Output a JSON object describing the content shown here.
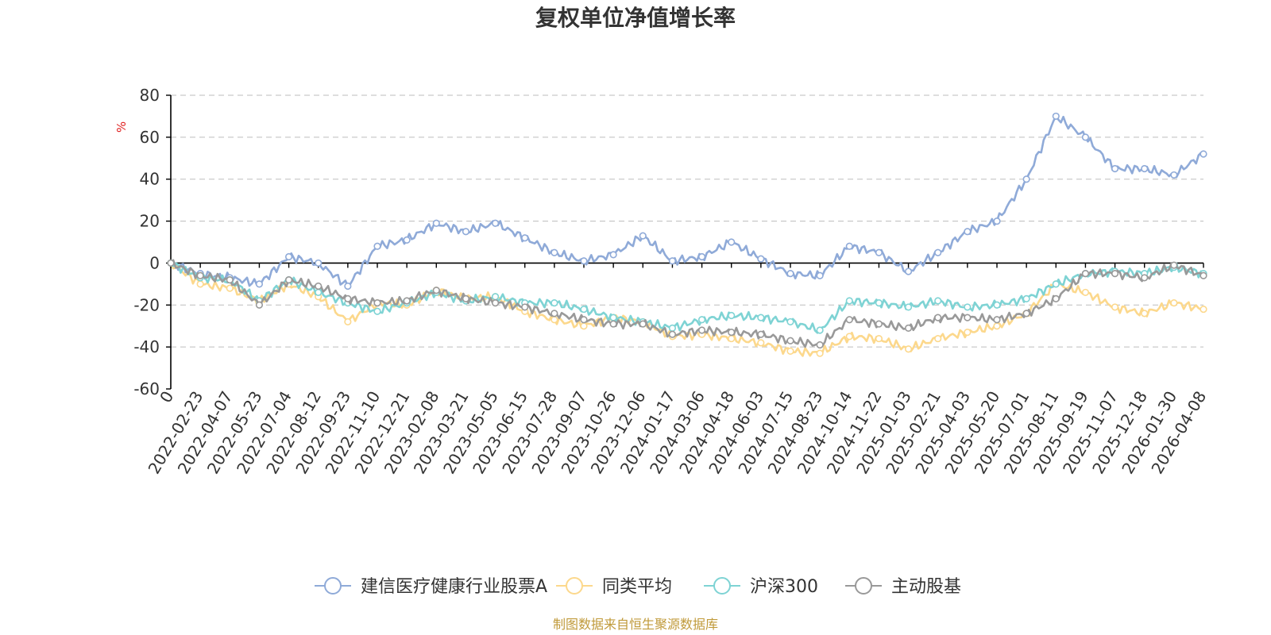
{
  "chart_data": {
    "type": "line",
    "title": "复权单位净值增长率",
    "ylabel": "%",
    "ylim": [
      -60,
      80
    ],
    "yticks": [
      80,
      60,
      40,
      20,
      0,
      -20,
      -40,
      -60
    ],
    "grid": true,
    "legend_position": "bottom",
    "source_note": "制图数据来自恒生聚源数据库",
    "x": [
      "0",
      "2022-02-23",
      "2022-04-07",
      "2022-05-23",
      "2022-07-04",
      "2022-08-12",
      "2022-09-23",
      "2022-11-10",
      "2022-12-21",
      "2023-02-08",
      "2023-03-21",
      "2023-05-05",
      "2023-06-15",
      "2023-07-28",
      "2023-09-07",
      "2023-10-26",
      "2023-12-06",
      "2024-01-17",
      "2024-03-06",
      "2024-04-18",
      "2024-06-03",
      "2024-07-15",
      "2024-08-23",
      "2024-10-14",
      "2024-11-22",
      "2025-01-03",
      "2025-02-21",
      "2025-04-03",
      "2025-05-20",
      "2025-07-01",
      "2025-08-11",
      "2025-09-19",
      "2025-11-07",
      "2025-12-18",
      "2026-01-30",
      "2026-04-08"
    ],
    "series": [
      {
        "name": "建信医疗健康行业股票A",
        "color": "#8faad8",
        "values": [
          0,
          -5,
          -7,
          -10,
          3,
          0,
          -11,
          8,
          11,
          19,
          15,
          19,
          12,
          5,
          1,
          4,
          13,
          1,
          3,
          10,
          2,
          -5,
          -6,
          8,
          5,
          -4,
          5,
          15,
          20,
          40,
          70,
          60,
          45,
          45,
          42,
          52
        ]
      },
      {
        "name": "同类平均",
        "color": "#fcd88c",
        "values": [
          0,
          -10,
          -12,
          -18,
          -10,
          -16,
          -28,
          -19,
          -20,
          -13,
          -17,
          -16,
          -23,
          -27,
          -30,
          -26,
          -28,
          -35,
          -34,
          -36,
          -38,
          -42,
          -43,
          -35,
          -36,
          -41,
          -36,
          -33,
          -30,
          -24,
          -10,
          -14,
          -21,
          -24,
          -19,
          -22
        ]
      },
      {
        "name": "沪深300",
        "color": "#7ed3d4",
        "values": [
          0,
          -7,
          -8,
          -18,
          -8,
          -14,
          -19,
          -23,
          -19,
          -14,
          -18,
          -16,
          -19,
          -19,
          -22,
          -26,
          -28,
          -31,
          -27,
          -25,
          -26,
          -28,
          -32,
          -18,
          -19,
          -21,
          -18,
          -21,
          -20,
          -17,
          -10,
          -5,
          -4,
          -5,
          -2,
          -5
        ]
      },
      {
        "name": "主动股基",
        "color": "#999999",
        "values": [
          0,
          -6,
          -8,
          -20,
          -8,
          -11,
          -17,
          -19,
          -18,
          -13,
          -17,
          -19,
          -21,
          -24,
          -27,
          -29,
          -29,
          -34,
          -32,
          -33,
          -34,
          -37,
          -39,
          -27,
          -29,
          -31,
          -26,
          -26,
          -27,
          -24,
          -17,
          -5,
          -5,
          -7,
          -1,
          -6
        ]
      }
    ]
  }
}
